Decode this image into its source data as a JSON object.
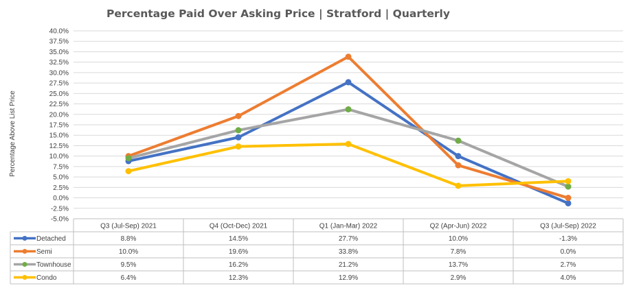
{
  "chart_data": {
    "type": "line",
    "title": "Percentage Paid Over Asking Price | Stratford |  Quarterly",
    "xlabel": "",
    "ylabel": "Percentage Above List Price",
    "ylim": [
      -5.0,
      40.0
    ],
    "ytick_step": 2.5,
    "y_ticks": [
      "40.0%",
      "37.5%",
      "35.0%",
      "32.5%",
      "30.0%",
      "27.5%",
      "25.0%",
      "22.5%",
      "20.0%",
      "17.5%",
      "15.0%",
      "12.5%",
      "10.0%",
      "7.5%",
      "5.0%",
      "2.5%",
      "0.0%",
      "-2.5%",
      "-5.0%"
    ],
    "grid": true,
    "legend": "data-table",
    "categories": [
      "Q3 (Jul-Sep) 2021",
      "Q4 (Oct-Dec) 2021",
      "Q1 (Jan-Mar) 2022",
      "Q2 (Apr-Jun) 2022",
      "Q3 (Jul-Sep) 2022"
    ],
    "series": [
      {
        "name": "Detached",
        "color": "#4472C4",
        "values": [
          8.8,
          14.5,
          27.7,
          10.0,
          -1.3
        ],
        "labels": [
          "8.8%",
          "14.5%",
          "27.7%",
          "10.0%",
          "-1.3%"
        ]
      },
      {
        "name": "Semi",
        "color": "#ED7D31",
        "values": [
          10.0,
          19.6,
          33.8,
          7.8,
          0.0
        ],
        "labels": [
          "10.0%",
          "19.6%",
          "33.8%",
          "7.8%",
          "0.0%"
        ]
      },
      {
        "name": "Townhouse",
        "color": "#A5A5A5",
        "marker_color": "#70AD47",
        "values": [
          9.5,
          16.2,
          21.2,
          13.7,
          2.7
        ],
        "labels": [
          "9.5%",
          "16.2%",
          "21.2%",
          "13.7%",
          "2.7%"
        ]
      },
      {
        "name": "Condo",
        "color": "#FFC000",
        "values": [
          6.4,
          12.3,
          12.9,
          2.9,
          4.0
        ],
        "labels": [
          "6.4%",
          "12.3%",
          "12.9%",
          "2.9%",
          "4.0%"
        ]
      }
    ]
  }
}
